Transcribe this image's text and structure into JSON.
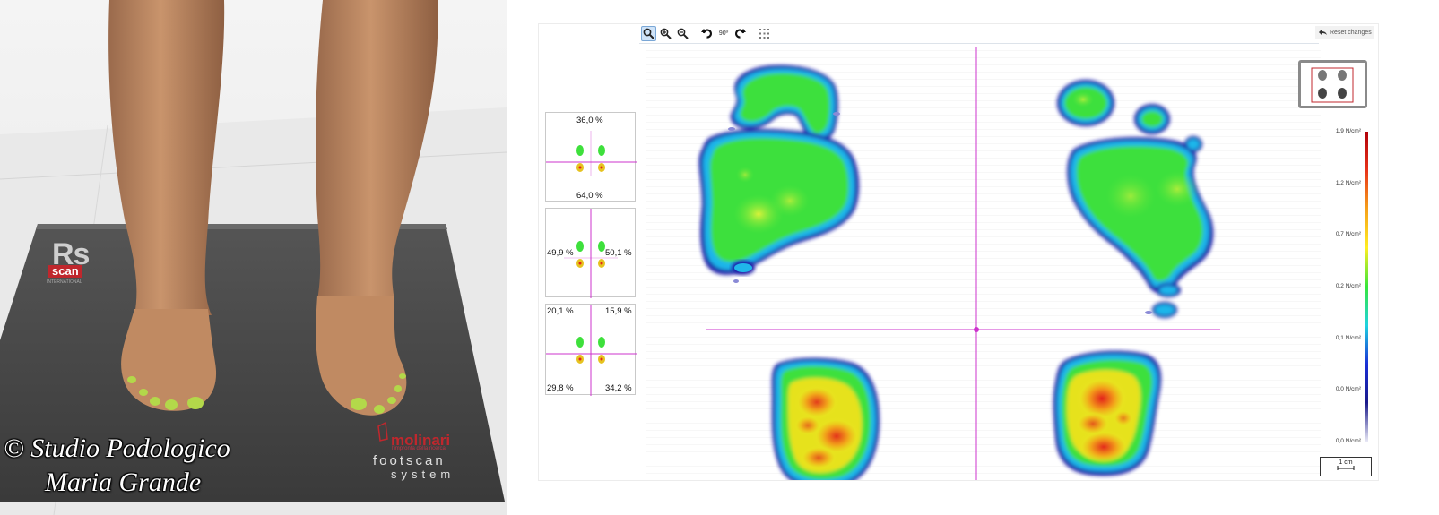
{
  "photo": {
    "mat_brand": "Rs",
    "mat_brand_scan": "scan",
    "mat_brand_intl": "INTERNATIONAL",
    "molinari": "molinari",
    "molinari_sub": "l'impronta della ricerca",
    "footscan": "footscan",
    "system": "system",
    "credit_line1": "© Studio Podologico",
    "credit_line2": "Maria Grande"
  },
  "toolbar": {
    "tools": [
      "zoom-select-icon",
      "zoom-in-icon",
      "zoom-out-icon",
      "rotate-left-icon",
      "rotate-right-icon",
      "grid-icon"
    ],
    "rotation": "90º",
    "reset_label": "Reset changes"
  },
  "stats": {
    "box1": {
      "top": "36,0 %",
      "bottom": "64,0 %"
    },
    "box2": {
      "left": "49,9 %",
      "right": "50,1 %"
    },
    "box3": {
      "top_left": "20,1 %",
      "top_right": "15,9 %",
      "bottom_left": "29,8 %",
      "bottom_right": "34,2 %"
    }
  },
  "scale": {
    "labels": [
      "1,9 N/cm²",
      "1,2 N/cm²",
      "0,7 N/cm²",
      "0,2 N/cm²",
      "0,1 N/cm²",
      "0,0 N/cm²",
      "0,0 N/cm²"
    ],
    "colors": [
      "#b0000a",
      "#e8331a",
      "#f6a11a",
      "#ffee22",
      "#37e63a",
      "#1fd3e0",
      "#1a2fd6",
      "#1a1a8a",
      "#e8e8f5"
    ]
  },
  "scalebar": {
    "label": "1 cm"
  },
  "colors": {
    "accent": "#cc33cc",
    "heat_low": "#1a2fd6",
    "heat_mid": "#37e63a",
    "heat_high": "#e8331a"
  }
}
